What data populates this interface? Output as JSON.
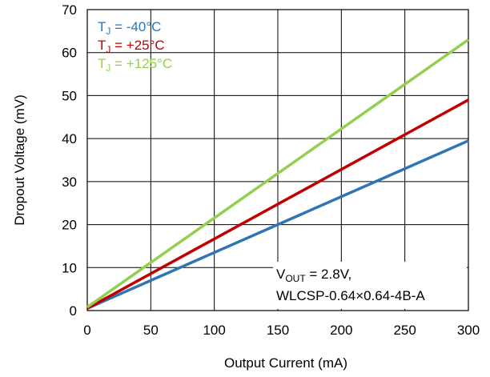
{
  "chart_data": {
    "type": "line",
    "xlabel": "Output  Current (mA)",
    "ylabel": "Dropout Voltage (mV)",
    "xlim": [
      0,
      300
    ],
    "ylim": [
      0,
      70
    ],
    "xticks": [
      0,
      50,
      100,
      150,
      200,
      250,
      300
    ],
    "yticks": [
      0,
      10,
      20,
      30,
      40,
      50,
      60,
      70
    ],
    "grid": true,
    "legend_position": "top-left",
    "series": [
      {
        "name": "TJ = -40°C",
        "label_main": "T",
        "label_sub": "J",
        "label_rest": " = -40°C",
        "color": "#2E75B6",
        "x": [
          0,
          300
        ],
        "y": [
          0.5,
          39.5
        ]
      },
      {
        "name": "TJ = +25°C",
        "label_main": "T",
        "label_sub": "J",
        "label_rest": " = +25°C",
        "color": "#C00000",
        "x": [
          0,
          300
        ],
        "y": [
          0.5,
          49
        ]
      },
      {
        "name": "TJ = +125°C",
        "label_main": "T",
        "label_sub": "J",
        "label_rest": " = +125°C",
        "color": "#92D050",
        "x": [
          0,
          300
        ],
        "y": [
          0.8,
          63
        ]
      }
    ],
    "annotation": {
      "line1_main": "V",
      "line1_sub": "OUT",
      "line1_rest": " = 2.8V,",
      "line2": "WLCSP-0.64×0.64-4B-A"
    }
  }
}
